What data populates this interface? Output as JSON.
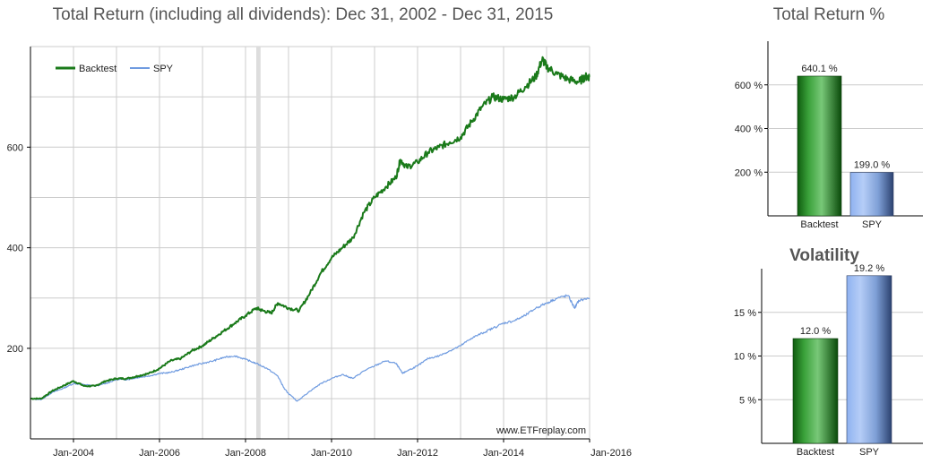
{
  "colors": {
    "backtest": "#1a7a1a",
    "spy": "#6f9be0",
    "grid": "#cccccc",
    "recession": "#dddddd"
  },
  "chart_data": [
    {
      "type": "line",
      "title": "Total Return (including all dividends): Dec 31, 2002 - Dec 31, 2015",
      "watermark": "www.ETFreplay.com",
      "legend_position": "top-left",
      "grid": true,
      "xlim": [
        2003.0,
        2016.0
      ],
      "ylim": [
        20,
        800
      ],
      "x_ticks": [
        {
          "value": 2004.0,
          "label": "Jan-2004"
        },
        {
          "value": 2006.0,
          "label": "Jan-2006"
        },
        {
          "value": 2008.0,
          "label": "Jan-2008"
        },
        {
          "value": 2010.0,
          "label": "Jan-2010"
        },
        {
          "value": 2012.0,
          "label": "Jan-2012"
        },
        {
          "value": 2014.0,
          "label": "Jan-2014"
        },
        {
          "value": 2016.0,
          "label": "Jan-2016"
        }
      ],
      "y_ticks": [
        {
          "value": 200,
          "label": "200"
        },
        {
          "value": 400,
          "label": "400"
        },
        {
          "value": 600,
          "label": "600"
        }
      ],
      "shaded_period": [
        2008.25,
        2008.35
      ],
      "series": [
        {
          "name": "Backtest",
          "color_key": "backtest",
          "points": [
            [
              2003.0,
              100
            ],
            [
              2003.25,
              100
            ],
            [
              2003.5,
              115
            ],
            [
              2003.75,
              125
            ],
            [
              2004.0,
              135
            ],
            [
              2004.25,
              125
            ],
            [
              2004.5,
              125
            ],
            [
              2004.75,
              135
            ],
            [
              2005.0,
              140
            ],
            [
              2005.25,
              140
            ],
            [
              2005.5,
              145
            ],
            [
              2005.75,
              150
            ],
            [
              2006.0,
              160
            ],
            [
              2006.25,
              175
            ],
            [
              2006.5,
              180
            ],
            [
              2006.75,
              195
            ],
            [
              2007.0,
              205
            ],
            [
              2007.25,
              220
            ],
            [
              2007.5,
              235
            ],
            [
              2007.75,
              250
            ],
            [
              2008.0,
              265
            ],
            [
              2008.25,
              280
            ],
            [
              2008.4,
              275
            ],
            [
              2008.6,
              270
            ],
            [
              2008.75,
              290
            ],
            [
              2009.0,
              280
            ],
            [
              2009.25,
              275
            ],
            [
              2009.5,
              310
            ],
            [
              2009.75,
              350
            ],
            [
              2010.0,
              380
            ],
            [
              2010.25,
              400
            ],
            [
              2010.5,
              420
            ],
            [
              2010.75,
              470
            ],
            [
              2011.0,
              500
            ],
            [
              2011.25,
              520
            ],
            [
              2011.5,
              540
            ],
            [
              2011.6,
              575
            ],
            [
              2011.75,
              560
            ],
            [
              2012.0,
              570
            ],
            [
              2012.25,
              590
            ],
            [
              2012.5,
              600
            ],
            [
              2012.75,
              610
            ],
            [
              2013.0,
              620
            ],
            [
              2013.25,
              650
            ],
            [
              2013.5,
              680
            ],
            [
              2013.75,
              700
            ],
            [
              2014.0,
              695
            ],
            [
              2014.25,
              700
            ],
            [
              2014.5,
              720
            ],
            [
              2014.75,
              740
            ],
            [
              2014.9,
              775
            ],
            [
              2015.0,
              760
            ],
            [
              2015.25,
              745
            ],
            [
              2015.5,
              735
            ],
            [
              2015.75,
              730
            ],
            [
              2015.9,
              740
            ],
            [
              2016.0,
              740
            ]
          ]
        },
        {
          "name": "SPY",
          "color_key": "spy",
          "points": [
            [
              2003.0,
              100
            ],
            [
              2003.25,
              98
            ],
            [
              2003.5,
              112
            ],
            [
              2003.75,
              120
            ],
            [
              2004.0,
              130
            ],
            [
              2004.25,
              128
            ],
            [
              2004.5,
              125
            ],
            [
              2004.75,
              130
            ],
            [
              2005.0,
              138
            ],
            [
              2005.25,
              138
            ],
            [
              2005.5,
              142
            ],
            [
              2005.75,
              145
            ],
            [
              2006.0,
              150
            ],
            [
              2006.25,
              152
            ],
            [
              2006.5,
              158
            ],
            [
              2006.75,
              165
            ],
            [
              2007.0,
              170
            ],
            [
              2007.25,
              175
            ],
            [
              2007.5,
              182
            ],
            [
              2007.75,
              185
            ],
            [
              2008.0,
              178
            ],
            [
              2008.25,
              170
            ],
            [
              2008.5,
              160
            ],
            [
              2008.75,
              145
            ],
            [
              2008.9,
              120
            ],
            [
              2009.0,
              110
            ],
            [
              2009.2,
              95
            ],
            [
              2009.5,
              115
            ],
            [
              2009.75,
              130
            ],
            [
              2010.0,
              140
            ],
            [
              2010.25,
              148
            ],
            [
              2010.5,
              140
            ],
            [
              2010.75,
              155
            ],
            [
              2011.0,
              165
            ],
            [
              2011.25,
              175
            ],
            [
              2011.5,
              170
            ],
            [
              2011.65,
              150
            ],
            [
              2011.75,
              155
            ],
            [
              2012.0,
              165
            ],
            [
              2012.25,
              180
            ],
            [
              2012.5,
              185
            ],
            [
              2012.75,
              195
            ],
            [
              2013.0,
              205
            ],
            [
              2013.25,
              220
            ],
            [
              2013.5,
              230
            ],
            [
              2013.75,
              240
            ],
            [
              2014.0,
              250
            ],
            [
              2014.25,
              255
            ],
            [
              2014.5,
              265
            ],
            [
              2014.75,
              280
            ],
            [
              2015.0,
              290
            ],
            [
              2015.25,
              300
            ],
            [
              2015.5,
              305
            ],
            [
              2015.65,
              280
            ],
            [
              2015.75,
              295
            ],
            [
              2016.0,
              300
            ]
          ]
        }
      ]
    },
    {
      "type": "bar",
      "title": "Total Return %",
      "categories": [
        "Backtest",
        "SPY"
      ],
      "values": [
        640.1,
        199.0
      ],
      "value_labels": [
        "640.1 %",
        "199.0 %"
      ],
      "ylim": [
        0,
        800
      ],
      "y_ticks": [
        {
          "value": 200,
          "label": "200 %"
        },
        {
          "value": 400,
          "label": "400 %"
        },
        {
          "value": 600,
          "label": "600 %"
        }
      ]
    },
    {
      "type": "bar",
      "title": "Volatility",
      "categories": [
        "Backtest",
        "SPY"
      ],
      "values": [
        12.0,
        19.2
      ],
      "value_labels": [
        "12.0 %",
        "19.2 %"
      ],
      "ylim": [
        0,
        20
      ],
      "y_ticks": [
        {
          "value": 5,
          "label": "5 %"
        },
        {
          "value": 10,
          "label": "10 %"
        },
        {
          "value": 15,
          "label": "15 %"
        }
      ]
    }
  ]
}
